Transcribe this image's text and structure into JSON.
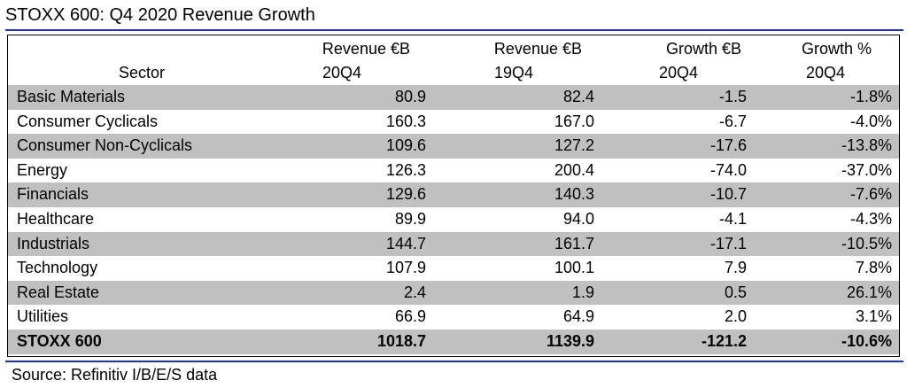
{
  "title": "STOXX 600: Q4 2020 Revenue Growth",
  "table": {
    "headers": [
      {
        "line1": "",
        "line2": "Sector"
      },
      {
        "line1": "Revenue €B",
        "line2": "20Q4"
      },
      {
        "line1": "Revenue €B",
        "line2": "19Q4"
      },
      {
        "line1": "Growth €B",
        "line2": "20Q4"
      },
      {
        "line1": "Growth %",
        "line2": "20Q4"
      }
    ],
    "rows": [
      {
        "sector": "Basic Materials",
        "rev20": "80.9",
        "rev19": "82.4",
        "growth_eur": "-1.5",
        "growth_pct": "-1.8%"
      },
      {
        "sector": "Consumer Cyclicals",
        "rev20": "160.3",
        "rev19": "167.0",
        "growth_eur": "-6.7",
        "growth_pct": "-4.0%"
      },
      {
        "sector": "Consumer Non-Cyclicals",
        "rev20": "109.6",
        "rev19": "127.2",
        "growth_eur": "-17.6",
        "growth_pct": "-13.8%"
      },
      {
        "sector": "Energy",
        "rev20": "126.3",
        "rev19": "200.4",
        "growth_eur": "-74.0",
        "growth_pct": "-37.0%"
      },
      {
        "sector": "Financials",
        "rev20": "129.6",
        "rev19": "140.3",
        "growth_eur": "-10.7",
        "growth_pct": "-7.6%"
      },
      {
        "sector": "Healthcare",
        "rev20": "89.9",
        "rev19": "94.0",
        "growth_eur": "-4.1",
        "growth_pct": "-4.3%"
      },
      {
        "sector": "Industrials",
        "rev20": "144.7",
        "rev19": "161.7",
        "growth_eur": "-17.1",
        "growth_pct": "-10.5%"
      },
      {
        "sector": "Technology",
        "rev20": "107.9",
        "rev19": "100.1",
        "growth_eur": "7.9",
        "growth_pct": "7.8%"
      },
      {
        "sector": "Real Estate",
        "rev20": "2.4",
        "rev19": "1.9",
        "growth_eur": "0.5",
        "growth_pct": "26.1%"
      },
      {
        "sector": "Utilities",
        "rev20": "66.9",
        "rev19": "64.9",
        "growth_eur": "2.0",
        "growth_pct": "3.1%"
      },
      {
        "sector": "STOXX 600",
        "rev20": "1018.7",
        "rev19": "1139.9",
        "growth_eur": "-121.2",
        "growth_pct": "-10.6%"
      }
    ]
  },
  "source": "Source: Refinitiv I/B/E/S data",
  "colors": {
    "rule": "#1f2fc4",
    "shaded_row": "#c0c0c0",
    "text": "#000000",
    "background": "#ffffff"
  }
}
